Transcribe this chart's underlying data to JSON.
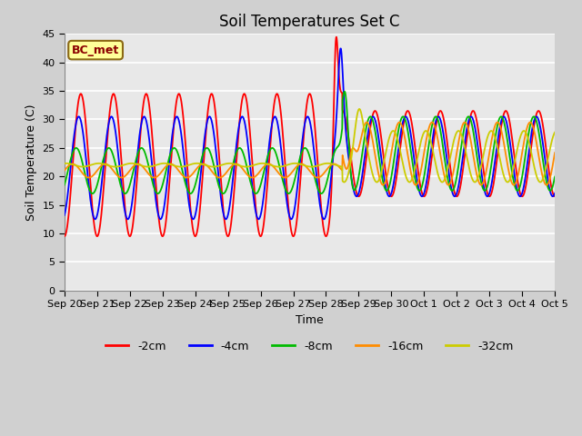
{
  "title": "Soil Temperatures Set C",
  "xlabel": "Time",
  "ylabel": "Soil Temperature (C)",
  "ylim": [
    0,
    45
  ],
  "xlim": [
    0,
    15
  ],
  "annotation_label": "BC_met",
  "annotation_text_color": "#8B0000",
  "annotation_bg": "#FFFF99",
  "annotation_border": "#8B6914",
  "series_labels": [
    "-2cm",
    "-4cm",
    "-8cm",
    "-16cm",
    "-32cm"
  ],
  "series_colors": [
    "#FF0000",
    "#0000FF",
    "#00BB00",
    "#FF8C00",
    "#CCCC00"
  ],
  "fig_bg_color": "#D0D0D0",
  "plot_bg_color": "#E8E8E8",
  "grid_color": "#FFFFFF",
  "title_fontsize": 12,
  "axis_label_fontsize": 9,
  "tick_fontsize": 8,
  "x_tick_labels": [
    "Sep 20",
    "Sep 21",
    "Sep 22",
    "Sep 23",
    "Sep 24",
    "Sep 25",
    "Sep 26",
    "Sep 27",
    "Sep 28",
    "Sep 29",
    "Sep 30",
    "Oct 1",
    "Oct 2",
    "Oct 3",
    "Oct 4",
    "Oct 5"
  ],
  "yticks": [
    0,
    5,
    10,
    15,
    20,
    25,
    30,
    35,
    40,
    45
  ]
}
